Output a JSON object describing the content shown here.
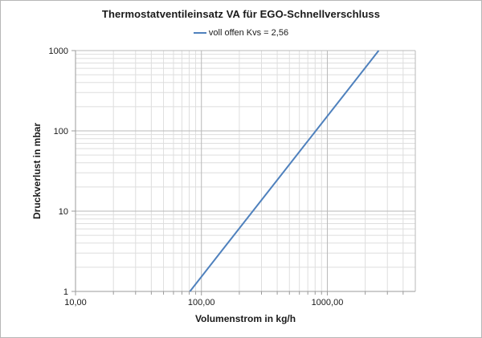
{
  "colors": {
    "series_blue": "#4F81BD",
    "grid_major": "#b9b9b9",
    "grid_minor": "#dedede",
    "axis_line": "#9b9b9b",
    "text": "#1a1a1a",
    "chart_border": "#b7b7b7",
    "background": "#ffffff"
  },
  "chart_data": {
    "type": "line",
    "title": "Thermostatventileinsatz VA für EGO-Schnellverschluss",
    "legend": {
      "position": "top",
      "entries": [
        {
          "label": "voll offen Kvs = 2,56",
          "color": "#4F81BD"
        }
      ]
    },
    "xlabel": "Volumenstrom in kg/h",
    "ylabel": "Druckverlust in mbar",
    "x_scale": "log",
    "y_scale": "log",
    "x_range": [
      10,
      5000
    ],
    "y_range": [
      1,
      1000
    ],
    "grid": {
      "major": true,
      "minor": true
    },
    "x_ticks": [
      {
        "value": 10,
        "label": "10,00"
      },
      {
        "value": 100,
        "label": "100,00"
      },
      {
        "value": 1000,
        "label": "1000,00"
      }
    ],
    "y_ticks": [
      {
        "value": 1,
        "label": "1"
      },
      {
        "value": 10,
        "label": "10"
      },
      {
        "value": 100,
        "label": "100"
      },
      {
        "value": 1000,
        "label": "1000"
      }
    ],
    "series": [
      {
        "name": "voll offen Kvs = 2,56",
        "color": "#4F81BD",
        "kvs": "2,56",
        "points": [
          [
            81,
            1
          ],
          [
            144,
            3.16
          ],
          [
            256,
            10
          ],
          [
            455,
            31.6
          ],
          [
            810,
            100
          ],
          [
            1440,
            316
          ],
          [
            2560,
            1000
          ]
        ]
      }
    ]
  }
}
